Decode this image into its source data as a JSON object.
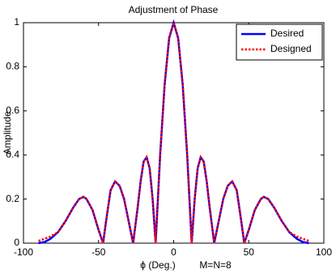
{
  "chart_data": {
    "type": "line",
    "title": "Adjustment of Phase",
    "x_label": "ϕ (Deg.)",
    "annotation": "M=N=8",
    "y_label": "Amplitude",
    "x": [
      -90,
      -86,
      -82,
      -77,
      -72,
      -67,
      -63,
      -60,
      -58,
      -54,
      -50,
      -47,
      -45,
      -42,
      -39,
      -36,
      -33,
      -30,
      -27,
      -24,
      -22,
      -20,
      -18,
      -16,
      -14,
      -12,
      -9,
      -6,
      -3,
      0,
      3,
      6,
      9,
      12,
      14,
      16,
      18,
      20,
      22,
      24,
      27,
      30,
      33,
      36,
      39,
      42,
      45,
      47,
      50,
      54,
      58,
      60,
      63,
      67,
      72,
      77,
      82,
      86,
      90
    ],
    "series": [
      {
        "name": "Desired",
        "color": "#0000ff",
        "dash": "solid",
        "values": [
          0,
          0.005,
          0.02,
          0.05,
          0.1,
          0.16,
          0.2,
          0.21,
          0.2,
          0.15,
          0.06,
          0,
          0.1,
          0.24,
          0.28,
          0.26,
          0.2,
          0.1,
          0,
          0.16,
          0.28,
          0.37,
          0.39,
          0.34,
          0.2,
          0,
          0.4,
          0.72,
          0.93,
          1,
          0.93,
          0.72,
          0.4,
          0,
          0.2,
          0.34,
          0.39,
          0.37,
          0.28,
          0.16,
          0,
          0.1,
          0.2,
          0.26,
          0.28,
          0.24,
          0.1,
          0,
          0.06,
          0.15,
          0.2,
          0.21,
          0.2,
          0.16,
          0.1,
          0.05,
          0.02,
          0.005,
          0
        ]
      },
      {
        "name": "Designed",
        "color": "#ff0000",
        "dash": "dotted",
        "values": [
          0.01,
          0.02,
          0.03,
          0.05,
          0.1,
          0.16,
          0.2,
          0.21,
          0.2,
          0.15,
          0.06,
          0,
          0.1,
          0.24,
          0.28,
          0.26,
          0.2,
          0.1,
          0,
          0.16,
          0.28,
          0.37,
          0.39,
          0.34,
          0.2,
          0,
          0.4,
          0.72,
          0.93,
          1,
          0.93,
          0.72,
          0.4,
          0,
          0.2,
          0.34,
          0.39,
          0.37,
          0.28,
          0.16,
          0,
          0.1,
          0.2,
          0.26,
          0.28,
          0.24,
          0.1,
          0,
          0.06,
          0.15,
          0.2,
          0.21,
          0.2,
          0.16,
          0.1,
          0.05,
          0.03,
          0.02,
          0.01
        ]
      }
    ],
    "xlim": [
      -100,
      100
    ],
    "xticks": [
      -100,
      -50,
      0,
      50,
      100
    ],
    "ylim": [
      0,
      1
    ],
    "yticks": [
      0,
      0.2,
      0.4,
      0.6,
      0.8,
      1
    ],
    "grid": false,
    "legend": "upper right"
  }
}
